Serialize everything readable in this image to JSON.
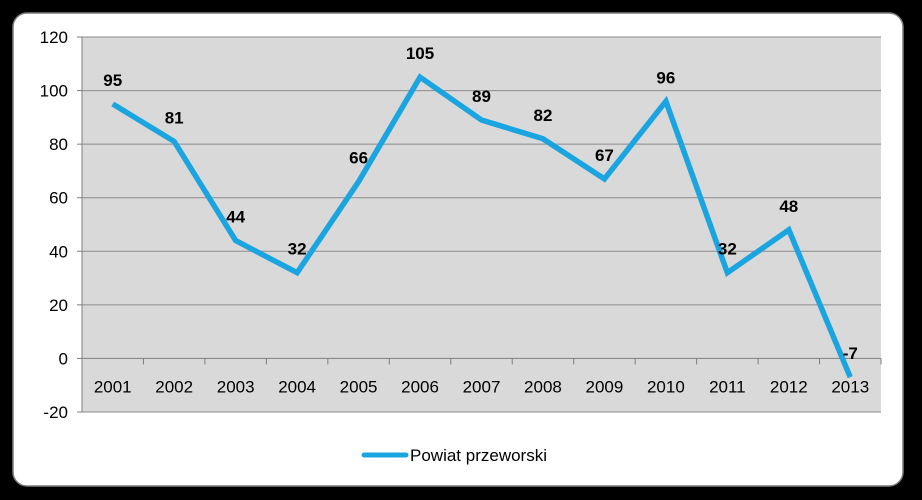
{
  "chart_data": {
    "type": "line",
    "title": "",
    "xlabel": "",
    "ylabel": "",
    "categories": [
      "2001",
      "2002",
      "2003",
      "2004",
      "2005",
      "2006",
      "2007",
      "2008",
      "2009",
      "2010",
      "2011",
      "2012",
      "2013"
    ],
    "series": [
      {
        "name": "Powiat przeworski",
        "values": [
          95,
          81,
          44,
          32,
          66,
          105,
          89,
          82,
          67,
          96,
          32,
          48,
          -7
        ],
        "color": "#1BA5E0"
      }
    ],
    "ylim": [
      -20,
      120
    ],
    "yticks": [
      "-20",
      "0",
      "20",
      "40",
      "60",
      "80",
      "100",
      "120"
    ],
    "grid": true,
    "legend_position": "bottom",
    "colors": {
      "outer_background": "#000000",
      "chart_background": "#FFFFFF",
      "plot_background": "#D9D9D9",
      "gridline": "#8C8C8C"
    }
  }
}
